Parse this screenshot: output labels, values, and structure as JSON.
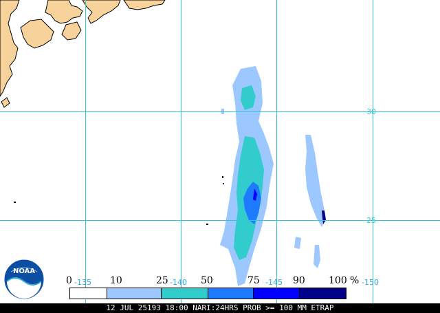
{
  "map": {
    "lat_labels": [
      "30",
      "25"
    ],
    "lon_labels": [
      "-135",
      "-140",
      "-145",
      "-150"
    ],
    "land_color": "#f7d39b",
    "grid_color": "#37c6d6",
    "logo_text": "NOAA"
  },
  "legend": {
    "ticks": [
      "0",
      "10",
      "25",
      "50",
      "75",
      "90",
      "100"
    ],
    "unit": "%",
    "colors": [
      "#ffffff",
      "#9cc8ff",
      "#33cccc",
      "#1e7bff",
      "#0000ff",
      "#00008b"
    ]
  },
  "footer": {
    "text": "12 JUL 25193 18:00 NARI:24HRS PROB >= 100 MM ETRAP"
  }
}
